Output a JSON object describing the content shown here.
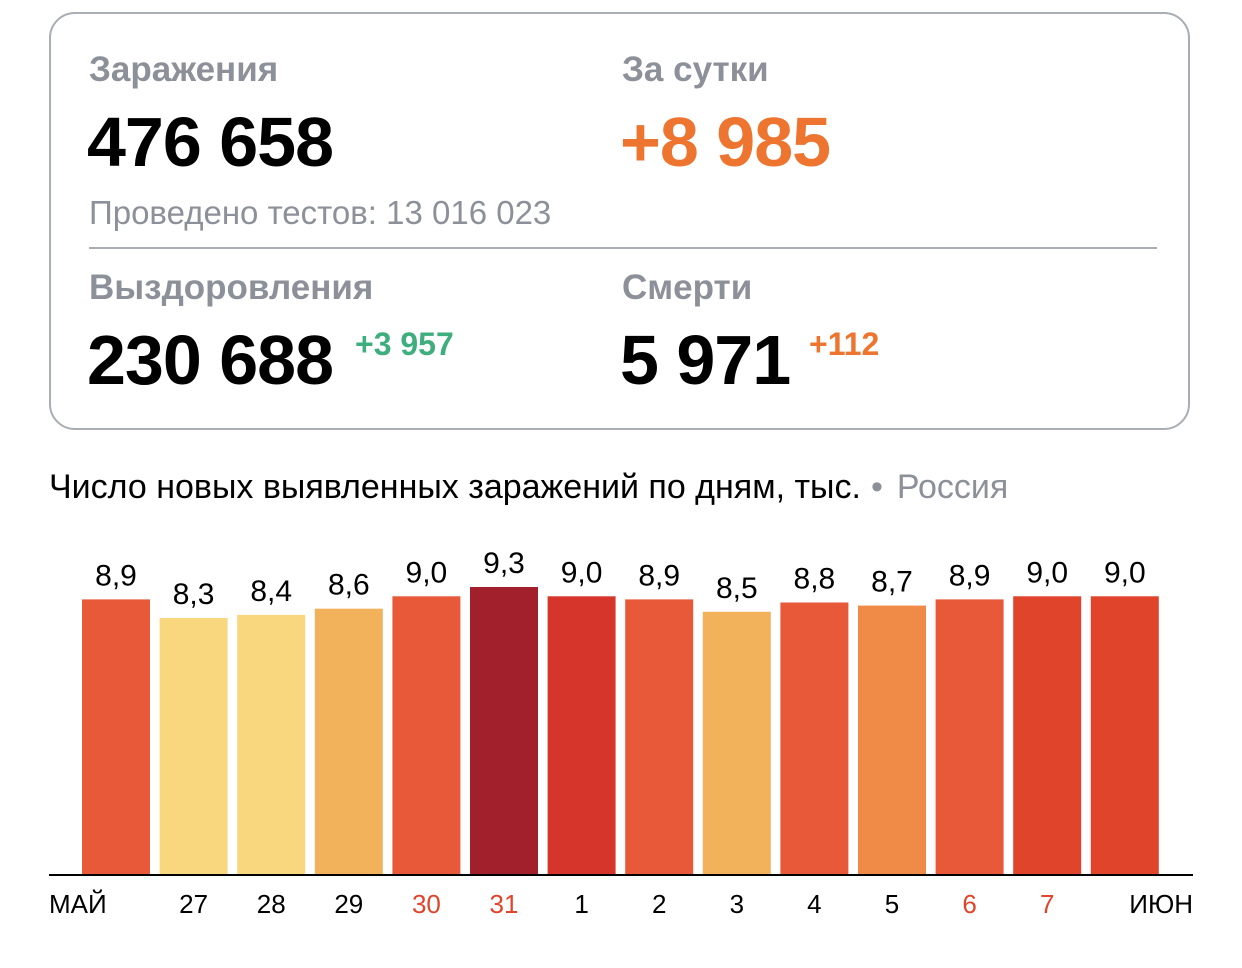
{
  "stats": {
    "infections": {
      "label": "Заражения",
      "value": "476 658"
    },
    "daily": {
      "label": "За сутки",
      "value": "+8 985"
    },
    "tests": "Проведено тестов: 13 016 023",
    "recovered": {
      "label": "Выздоровления",
      "value": "230 688",
      "delta": "+3 957"
    },
    "deaths": {
      "label": "Смерти",
      "value": "5 971",
      "delta": "+112"
    }
  },
  "chart_title": "Число новых выявленных заражений по дням, тыс.",
  "chart_region": "Россия",
  "colors": {
    "orange_accent": "#ed7530",
    "green_accent": "#3fae7e",
    "weekend_label": "#e0442a"
  },
  "chart_data": {
    "type": "bar",
    "title": "Число новых выявленных заражений по дням, тыс.",
    "categories": [
      "МАЙ",
      "27",
      "28",
      "29",
      "30",
      "31",
      "1",
      "2",
      "3",
      "4",
      "5",
      "6",
      "7",
      "ИЮН"
    ],
    "values": [
      8.9,
      8.3,
      8.4,
      8.6,
      9.0,
      9.3,
      9.0,
      8.9,
      8.5,
      8.8,
      8.7,
      8.9,
      9.0,
      9.0
    ],
    "value_labels": [
      "8,9",
      "8,3",
      "8,4",
      "8,6",
      "9,0",
      "9,3",
      "9,0",
      "8,9",
      "8,5",
      "8,8",
      "8,7",
      "8,9",
      "9,0",
      "9,0"
    ],
    "bar_colors": [
      "#e8593a",
      "#f8d77e",
      "#f8d77e",
      "#f2b25c",
      "#e8593a",
      "#a21f2c",
      "#d5352b",
      "#e8593a",
      "#f2b25c",
      "#e8593a",
      "#ef8b47",
      "#e8593a",
      "#e0442a",
      "#e0442a"
    ],
    "tick_colors": [
      "#000000",
      "#000000",
      "#000000",
      "#000000",
      "#e0442a",
      "#e0442a",
      "#000000",
      "#000000",
      "#000000",
      "#000000",
      "#000000",
      "#e0442a",
      "#e0442a",
      "#000000"
    ],
    "ylim": [
      0,
      9.3
    ],
    "grid": false,
    "legend": "none"
  }
}
